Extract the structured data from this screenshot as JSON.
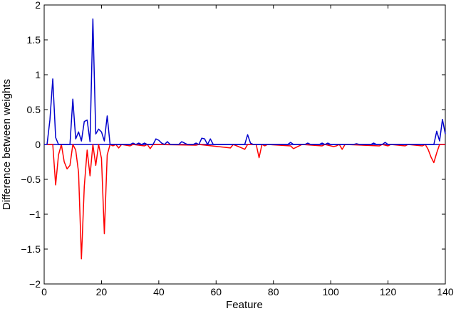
{
  "chart_data": {
    "type": "line",
    "xlabel": "Feature",
    "ylabel": "Difference between weights",
    "xlim": [
      0,
      140
    ],
    "ylim": [
      -2,
      2
    ],
    "xticks": [
      0,
      20,
      40,
      60,
      80,
      100,
      120,
      140
    ],
    "yticks": [
      -2,
      -1.5,
      -1,
      -0.5,
      0,
      0.5,
      1,
      1.5,
      2
    ],
    "ytick_labels": [
      "−2",
      "−1.5",
      "−1",
      "−0.5",
      "0",
      "0.5",
      "1",
      "1.5",
      "2"
    ],
    "grid": false,
    "series": [
      {
        "color": "#ff0000",
        "points": [
          [
            1,
            0
          ],
          [
            3,
            0
          ],
          [
            4,
            -0.58
          ],
          [
            5,
            -0.15
          ],
          [
            6,
            0
          ],
          [
            7,
            -0.25
          ],
          [
            8,
            -0.35
          ],
          [
            9,
            -0.3
          ],
          [
            10,
            0
          ],
          [
            11,
            -0.08
          ],
          [
            12,
            -0.4
          ],
          [
            13,
            -1.64
          ],
          [
            14,
            -0.6
          ],
          [
            15,
            -0.08
          ],
          [
            16,
            -0.45
          ],
          [
            17,
            0
          ],
          [
            18,
            -0.3
          ],
          [
            19,
            0
          ],
          [
            20,
            -0.2
          ],
          [
            21,
            -1.28
          ],
          [
            22,
            -0.15
          ],
          [
            23,
            0
          ],
          [
            24,
            -0.02
          ],
          [
            25,
            0
          ],
          [
            26,
            -0.05
          ],
          [
            27,
            0
          ],
          [
            30,
            -0.02
          ],
          [
            31,
            0
          ],
          [
            35,
            -0.02
          ],
          [
            36,
            0
          ],
          [
            37,
            -0.06
          ],
          [
            38,
            0
          ],
          [
            53,
            -0.01
          ],
          [
            54,
            0
          ],
          [
            65,
            -0.05
          ],
          [
            66,
            0
          ],
          [
            69,
            -0.05
          ],
          [
            70,
            -0.07
          ],
          [
            71,
            0
          ],
          [
            74,
            0
          ],
          [
            75,
            -0.19
          ],
          [
            76,
            0
          ],
          [
            77,
            -0.02
          ],
          [
            78,
            0
          ],
          [
            86,
            -0.02
          ],
          [
            87,
            -0.06
          ],
          [
            88,
            -0.04
          ],
          [
            89,
            -0.02
          ],
          [
            90,
            0
          ],
          [
            97,
            -0.02
          ],
          [
            98,
            0
          ],
          [
            101,
            -0.03
          ],
          [
            102,
            -0.02
          ],
          [
            103,
            0
          ],
          [
            104,
            -0.07
          ],
          [
            105,
            0
          ],
          [
            117,
            -0.02
          ],
          [
            118,
            0
          ],
          [
            120,
            -0.02
          ],
          [
            121,
            0
          ],
          [
            126,
            -0.02
          ],
          [
            127,
            0
          ],
          [
            132,
            -0.02
          ],
          [
            133,
            0
          ],
          [
            134,
            -0.07
          ],
          [
            135,
            -0.18
          ],
          [
            136,
            -0.26
          ],
          [
            137,
            -0.12
          ],
          [
            138,
            0
          ],
          [
            140,
            0
          ]
        ]
      },
      {
        "color": "#0000cc",
        "points": [
          [
            1,
            0
          ],
          [
            2,
            0.35
          ],
          [
            3,
            0.94
          ],
          [
            4,
            0.1
          ],
          [
            5,
            0
          ],
          [
            9,
            0
          ],
          [
            10,
            0.65
          ],
          [
            11,
            0.08
          ],
          [
            12,
            0.18
          ],
          [
            13,
            0.05
          ],
          [
            14,
            0.33
          ],
          [
            15,
            0.35
          ],
          [
            16,
            0.04
          ],
          [
            17,
            1.8
          ],
          [
            18,
            0.15
          ],
          [
            19,
            0.22
          ],
          [
            20,
            0.18
          ],
          [
            21,
            0.05
          ],
          [
            22,
            0.41
          ],
          [
            23,
            0
          ],
          [
            30,
            0
          ],
          [
            31,
            0.02
          ],
          [
            32,
            0
          ],
          [
            33,
            0.02
          ],
          [
            34,
            0
          ],
          [
            35,
            0.02
          ],
          [
            36,
            0
          ],
          [
            38,
            0
          ],
          [
            39,
            0.08
          ],
          [
            40,
            0.06
          ],
          [
            41,
            0.02
          ],
          [
            42,
            0
          ],
          [
            43,
            0.04
          ],
          [
            44,
            0
          ],
          [
            47,
            0
          ],
          [
            48,
            0.04
          ],
          [
            49,
            0.02
          ],
          [
            50,
            0
          ],
          [
            52,
            0
          ],
          [
            53,
            0.02
          ],
          [
            54,
            0
          ],
          [
            55,
            0.09
          ],
          [
            56,
            0.08
          ],
          [
            57,
            0
          ],
          [
            58,
            0.08
          ],
          [
            59,
            0
          ],
          [
            70,
            0
          ],
          [
            71,
            0.14
          ],
          [
            72,
            0.02
          ],
          [
            73,
            0
          ],
          [
            85,
            0
          ],
          [
            86,
            0.03
          ],
          [
            87,
            0
          ],
          [
            91,
            0
          ],
          [
            92,
            0.02
          ],
          [
            93,
            0
          ],
          [
            96,
            0
          ],
          [
            97,
            0.02
          ],
          [
            98,
            0
          ],
          [
            99,
            0.02
          ],
          [
            100,
            0
          ],
          [
            108,
            0
          ],
          [
            109,
            0.01
          ],
          [
            110,
            0
          ],
          [
            114,
            0
          ],
          [
            115,
            0.02
          ],
          [
            116,
            0
          ],
          [
            118,
            0
          ],
          [
            119,
            0.03
          ],
          [
            120,
            0
          ],
          [
            136,
            0
          ],
          [
            137,
            0.19
          ],
          [
            138,
            0.05
          ],
          [
            139,
            0.36
          ],
          [
            140,
            0.15
          ]
        ]
      }
    ]
  }
}
